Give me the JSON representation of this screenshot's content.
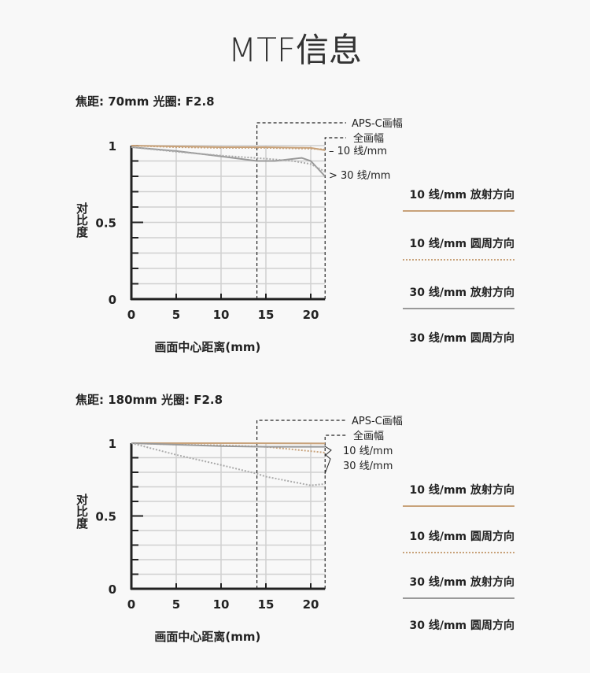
{
  "title": "MTF信息",
  "chart_data": [
    {
      "type": "line",
      "subtitle": "焦距: 70mm  光圈: F2.8",
      "xlabel": "画面中心距离(mm)",
      "ylabel": "对比度",
      "xlim": [
        0,
        21.6
      ],
      "ylim": [
        0,
        1
      ],
      "xticks": [
        "0",
        "5",
        "10",
        "15",
        "20"
      ],
      "yticks": [
        "0",
        "0.5",
        "1"
      ],
      "grid": true,
      "markers": [
        {
          "label": "APS-C画幅",
          "x": 14
        },
        {
          "label": "全画幅",
          "x": 21.6
        }
      ],
      "curve_labels": [
        "10 线/mm",
        "30 线/mm"
      ],
      "series": [
        {
          "name": "10 线/mm 放射方向",
          "color": "#c8a27a",
          "style": "solid",
          "x": [
            0,
            5,
            10,
            15,
            20,
            21.6
          ],
          "y": [
            1,
            0.995,
            0.99,
            0.99,
            0.985,
            0.97
          ]
        },
        {
          "name": "10 线/mm 圆周方向",
          "color": "#c8a27a",
          "style": "dotted",
          "x": [
            0,
            5,
            10,
            15,
            20,
            21.6
          ],
          "y": [
            1,
            0.99,
            0.985,
            0.985,
            0.98,
            0.975
          ]
        },
        {
          "name": "30 线/mm 放射方向",
          "color": "#999999",
          "style": "solid",
          "x": [
            0,
            5,
            10,
            14,
            16,
            19,
            20,
            21.6
          ],
          "y": [
            0.99,
            0.965,
            0.93,
            0.9,
            0.9,
            0.92,
            0.9,
            0.8
          ]
        },
        {
          "name": "30 线/mm 圆周方向",
          "color": "#aaaaaa",
          "style": "dotted",
          "x": [
            0,
            5,
            10,
            15,
            18,
            20,
            21.6
          ],
          "y": [
            0.99,
            0.96,
            0.935,
            0.915,
            0.9,
            0.88,
            0.83
          ]
        }
      ]
    },
    {
      "type": "line",
      "subtitle": "焦距: 180mm  光圈: F2.8",
      "xlabel": "画面中心距离(mm)",
      "ylabel": "对比度",
      "xlim": [
        0,
        21.6
      ],
      "ylim": [
        0,
        1
      ],
      "xticks": [
        "0",
        "5",
        "10",
        "15",
        "20"
      ],
      "yticks": [
        "0",
        "0.5",
        "1"
      ],
      "grid": true,
      "markers": [
        {
          "label": "APS-C画幅",
          "x": 14
        },
        {
          "label": "全画幅",
          "x": 21.6
        }
      ],
      "curve_labels": [
        "10 线/mm",
        "30 线/mm"
      ],
      "series": [
        {
          "name": "10 线/mm 放射方向",
          "color": "#c8a27a",
          "style": "solid",
          "x": [
            0,
            10,
            21.6
          ],
          "y": [
            1,
            1,
            0.998
          ]
        },
        {
          "name": "10 线/mm 圆周方向",
          "color": "#c8a27a",
          "style": "dotted",
          "x": [
            0,
            5,
            10,
            15,
            20,
            21.6
          ],
          "y": [
            1,
            0.99,
            0.985,
            0.975,
            0.945,
            0.935
          ]
        },
        {
          "name": "30 线/mm 放射方向",
          "color": "#999999",
          "style": "solid",
          "x": [
            0,
            5,
            10,
            15,
            21.6
          ],
          "y": [
            1,
            0.99,
            0.98,
            0.975,
            0.975
          ]
        },
        {
          "name": "30 线/mm 圆周方向",
          "color": "#aaaaaa",
          "style": "dotted",
          "x": [
            0,
            5,
            10,
            14,
            15,
            20,
            21.6
          ],
          "y": [
            1,
            0.92,
            0.85,
            0.79,
            0.77,
            0.71,
            0.72
          ]
        }
      ]
    }
  ]
}
